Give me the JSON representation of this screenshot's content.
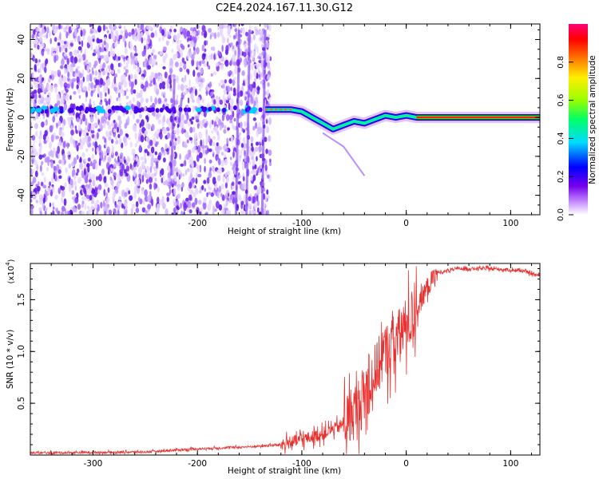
{
  "title": "C2E4.2024.167.11.30.G12",
  "chart_data": [
    {
      "type": "heatmap",
      "xlabel": "Height of straight line (km)",
      "ylabel": "Frequency (Hz)",
      "xlim": [
        -360,
        128
      ],
      "ylim": [
        -50,
        48
      ],
      "xticks": [
        -300,
        -200,
        -100,
        0,
        100
      ],
      "yticks": [
        -40,
        -20,
        0,
        20,
        40
      ],
      "colorbar": {
        "label": "Normalized spectral amplitude",
        "range": [
          0,
          1
        ],
        "ticks": [
          "0.0",
          "0.2",
          "0.4",
          "0.6",
          "0.8"
        ],
        "colors": [
          "#ffffff",
          "#cc99ff",
          "#7700ee",
          "#0000ff",
          "#00ddff",
          "#00ff66",
          "#99ff00",
          "#ffee00",
          "#ff7700",
          "#ff0000",
          "#ff0077"
        ]
      },
      "features": {
        "noise_region_x": [
          -360,
          -130
        ],
        "line_trace": [
          {
            "x": -135,
            "y": 4
          },
          {
            "x": -110,
            "y": 4
          },
          {
            "x": -100,
            "y": 3
          },
          {
            "x": -90,
            "y": 0
          },
          {
            "x": -80,
            "y": -3
          },
          {
            "x": -70,
            "y": -6
          },
          {
            "x": -60,
            "y": -4
          },
          {
            "x": -50,
            "y": -2
          },
          {
            "x": -40,
            "y": -3
          },
          {
            "x": -30,
            "y": -1
          },
          {
            "x": -20,
            "y": 1
          },
          {
            "x": -10,
            "y": 0
          },
          {
            "x": 0,
            "y": 1
          },
          {
            "x": 10,
            "y": 0
          },
          {
            "x": 128,
            "y": 0
          }
        ]
      }
    },
    {
      "type": "line",
      "series": [
        {
          "color": "#e8312f",
          "values_desc": "SNR vs height"
        }
      ],
      "xlabel": "Height of straight line (km)",
      "ylabel": "SNR (10 * v/v)",
      "yunit": "(x10^4)",
      "xlim": [
        -360,
        128
      ],
      "ylim": [
        0,
        1.85
      ],
      "xticks": [
        -300,
        -200,
        -100,
        0,
        100
      ],
      "yticks": [
        "0.5",
        "1.0",
        "1.5"
      ],
      "anchors": [
        {
          "x": -360,
          "y": 0.02
        },
        {
          "x": -250,
          "y": 0.03
        },
        {
          "x": -200,
          "y": 0.06
        },
        {
          "x": -150,
          "y": 0.08
        },
        {
          "x": -120,
          "y": 0.1
        },
        {
          "x": -100,
          "y": 0.15
        },
        {
          "x": -80,
          "y": 0.2
        },
        {
          "x": -60,
          "y": 0.3
        },
        {
          "x": -40,
          "y": 0.55
        },
        {
          "x": -30,
          "y": 0.8
        },
        {
          "x": -20,
          "y": 1.0
        },
        {
          "x": -10,
          "y": 1.1
        },
        {
          "x": 0,
          "y": 1.25
        },
        {
          "x": 10,
          "y": 1.4
        },
        {
          "x": 20,
          "y": 1.62
        },
        {
          "x": 30,
          "y": 1.76
        },
        {
          "x": 50,
          "y": 1.8
        },
        {
          "x": 80,
          "y": 1.8
        },
        {
          "x": 110,
          "y": 1.78
        },
        {
          "x": 128,
          "y": 1.73
        }
      ]
    }
  ]
}
